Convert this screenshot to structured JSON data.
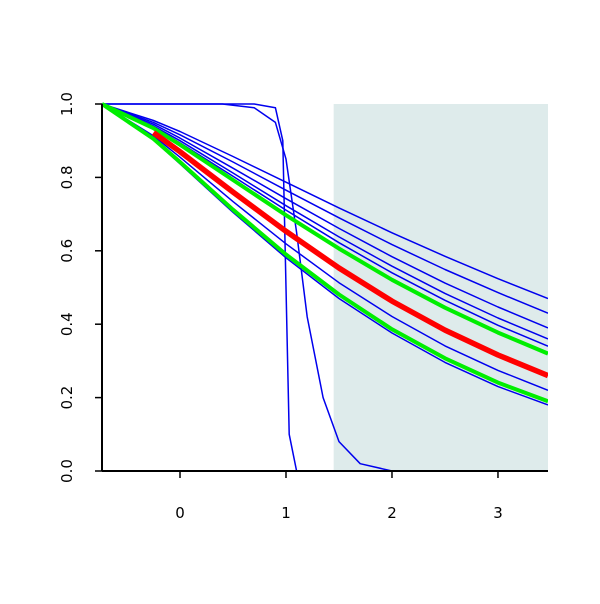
{
  "chart_data": {
    "type": "line",
    "xlim": [
      -0.736,
      3.472
    ],
    "ylim": [
      0,
      1
    ],
    "xticks": [
      0,
      1,
      2,
      3
    ],
    "yticks": [
      {
        "value": 0,
        "label": "0.0"
      },
      0.2,
      0.4,
      0.6,
      0.8,
      {
        "value": 1,
        "label": "1.0"
      }
    ],
    "shaded_region": {
      "xmin": 1.45,
      "xmax": 3.472,
      "color": "#deebeb"
    },
    "series": [
      {
        "color": "#0000ee",
        "width": 1.5,
        "x": [
          -0.736,
          0.7,
          0.9,
          0.97,
          1.0,
          1.03,
          1.1,
          3.472
        ],
        "values": [
          1,
          1,
          0.99,
          0.9,
          0.5,
          0.1,
          0,
          0
        ]
      },
      {
        "color": "#0000ee",
        "width": 1.5,
        "x": [
          -0.736,
          0.4,
          0.7,
          0.9,
          1.0,
          1.1,
          1.2,
          1.35,
          1.5,
          1.7,
          2.0,
          3.472
        ],
        "values": [
          1,
          1,
          0.99,
          0.95,
          0.85,
          0.65,
          0.42,
          0.2,
          0.08,
          0.02,
          0,
          0
        ]
      },
      {
        "color": "#0000ee",
        "width": 1.5,
        "x": [
          -0.736,
          -0.25,
          0,
          0.5,
          1,
          1.5,
          2,
          2.5,
          3,
          3.472
        ],
        "values": [
          1,
          0.955,
          0.925,
          0.857,
          0.787,
          0.717,
          0.649,
          0.585,
          0.524,
          0.47
        ]
      },
      {
        "color": "#0000ee",
        "width": 1.5,
        "x": [
          -0.736,
          -0.25,
          0,
          0.5,
          1,
          1.5,
          2,
          2.5,
          3,
          3.472
        ],
        "values": [
          1,
          0.95,
          0.916,
          0.842,
          0.765,
          0.69,
          0.617,
          0.549,
          0.486,
          0.43
        ]
      },
      {
        "color": "#0000ee",
        "width": 1.5,
        "x": [
          -0.736,
          -0.25,
          0,
          0.5,
          1,
          1.5,
          2,
          2.5,
          3,
          3.472
        ],
        "values": [
          1,
          0.945,
          0.907,
          0.825,
          0.742,
          0.661,
          0.584,
          0.512,
          0.447,
          0.39
        ]
      },
      {
        "color": "#0000ee",
        "width": 1.5,
        "x": [
          -0.736,
          -0.25,
          0,
          0.5,
          1,
          1.5,
          2,
          2.5,
          3,
          3.472
        ],
        "values": [
          1,
          0.94,
          0.9,
          0.812,
          0.723,
          0.638,
          0.558,
          0.484,
          0.417,
          0.36
        ]
      },
      {
        "color": "#0000ee",
        "width": 1.5,
        "x": [
          -0.736,
          -0.25,
          0,
          0.5,
          1,
          1.5,
          2,
          2.5,
          3,
          3.472
        ],
        "values": [
          1,
          0.937,
          0.894,
          0.803,
          0.711,
          0.622,
          0.54,
          0.465,
          0.397,
          0.34
        ]
      },
      {
        "color": "#0000ee",
        "width": 1.5,
        "x": [
          -0.736,
          -0.25,
          0,
          0.5,
          1,
          1.5,
          2,
          2.5,
          3,
          3.472
        ],
        "values": [
          1,
          0.913,
          0.855,
          0.734,
          0.619,
          0.513,
          0.421,
          0.341,
          0.274,
          0.22
        ]
      },
      {
        "color": "#0000ee",
        "width": 1.5,
        "x": [
          -0.736,
          -0.25,
          0,
          0.5,
          1,
          1.5,
          2,
          2.5,
          3,
          3.472
        ],
        "values": [
          1,
          0.902,
          0.837,
          0.705,
          0.581,
          0.47,
          0.376,
          0.296,
          0.23,
          0.18
        ]
      },
      {
        "color": "#00ee00",
        "width": 4,
        "x": [
          -0.736,
          -0.25,
          0,
          0.5,
          1,
          1.5,
          2,
          2.5,
          3,
          3.472
        ],
        "values": [
          1,
          0.934,
          0.889,
          0.793,
          0.697,
          0.606,
          0.521,
          0.445,
          0.377,
          0.32
        ]
      },
      {
        "color": "#00ee00",
        "width": 4,
        "x": [
          -0.736,
          -0.25,
          0,
          0.5,
          1,
          1.5,
          2,
          2.5,
          3,
          3.472
        ],
        "values": [
          1,
          0.905,
          0.842,
          0.712,
          0.59,
          0.481,
          0.386,
          0.307,
          0.241,
          0.19
        ]
      },
      {
        "color": "#ff0000",
        "width": 5.5,
        "x": [
          -0.736,
          -0.25,
          0,
          0.5,
          1,
          1.5,
          2,
          2.5,
          3,
          3.472
        ],
        "values": [
          null,
          0.922,
          0.87,
          0.76,
          0.653,
          0.553,
          0.463,
          0.384,
          0.316,
          0.26
        ]
      }
    ]
  }
}
